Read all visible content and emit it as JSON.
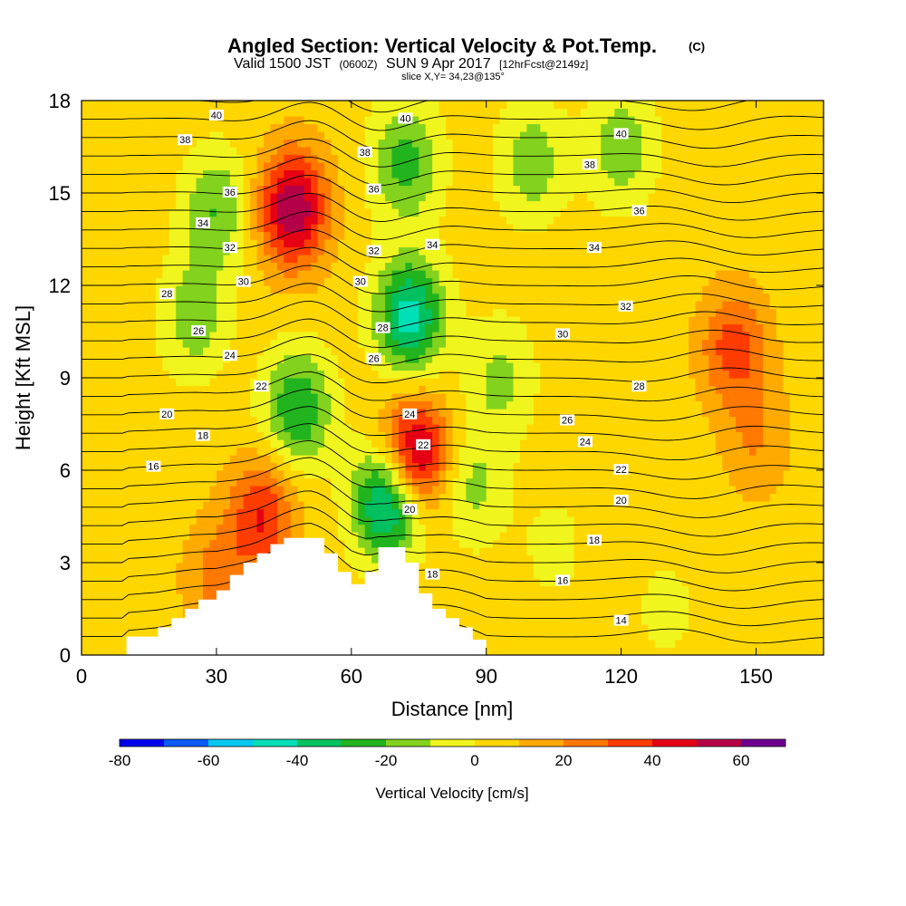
{
  "header": {
    "title": "Angled Section: Vertical Velocity & Pot.Temp.",
    "title_unit": "(C)",
    "valid_a": "Valid 1500 JST",
    "valid_b": "(0600Z)",
    "valid_c": "SUN 9 Apr 2017",
    "valid_d": "[12hrFcst@2149z]",
    "slice": "slice X,Y= 34,23@135°"
  },
  "chart_data": {
    "type": "heatmap",
    "xlabel": "Distance [nm]",
    "ylabel": "Height [Kft MSL]",
    "xlim": [
      0,
      165
    ],
    "ylim": [
      0,
      18
    ],
    "x_ticks": [
      "0",
      "30",
      "60",
      "90",
      "120",
      "150"
    ],
    "y_ticks": [
      "0",
      "3",
      "6",
      "9",
      "12",
      "15",
      "18"
    ],
    "field": "Vertical Velocity",
    "colorbar": {
      "label": "Vertical Velocity [cm/s]",
      "range": [
        -80,
        70
      ],
      "tick_labels": [
        "-80",
        "-60",
        "-40",
        "-20",
        "0",
        "20",
        "40",
        "60"
      ],
      "tick_values": [
        -80,
        -60,
        -40,
        -20,
        0,
        20,
        40,
        60
      ],
      "bins": [
        {
          "from": -80,
          "to": -70,
          "color": "#0000ee"
        },
        {
          "from": -70,
          "to": -60,
          "color": "#0a5af5"
        },
        {
          "from": -60,
          "to": -50,
          "color": "#00c8f0"
        },
        {
          "from": -50,
          "to": -40,
          "color": "#00e0b8"
        },
        {
          "from": -40,
          "to": -30,
          "color": "#00c060"
        },
        {
          "from": -30,
          "to": -20,
          "color": "#22b41e"
        },
        {
          "from": -20,
          "to": -10,
          "color": "#82d21e"
        },
        {
          "from": -10,
          "to": 0,
          "color": "#f0f51e"
        },
        {
          "from": 0,
          "to": 10,
          "color": "#ffd700"
        },
        {
          "from": 10,
          "to": 20,
          "color": "#ffaa00"
        },
        {
          "from": 20,
          "to": 30,
          "color": "#ff7800"
        },
        {
          "from": 30,
          "to": 40,
          "color": "#ff3c00"
        },
        {
          "from": 40,
          "to": 50,
          "color": "#e60014"
        },
        {
          "from": 50,
          "to": 60,
          "color": "#b40046"
        },
        {
          "from": 60,
          "to": 70,
          "color": "#6e0090"
        }
      ]
    },
    "background_value": 5,
    "features": [
      {
        "kind": "blob",
        "x": 68,
        "y": 5.0,
        "value": -55,
        "note": "downdraft near ridge"
      },
      {
        "kind": "blob",
        "x": 48,
        "y": 8.0,
        "value": -35
      },
      {
        "kind": "blob",
        "x": 73,
        "y": 11.0,
        "value": -50
      },
      {
        "kind": "blob",
        "x": 47,
        "y": 14.5,
        "value": 55,
        "note": "updraft aloft"
      },
      {
        "kind": "blob",
        "x": 74,
        "y": 6.5,
        "value": 55
      },
      {
        "kind": "blob",
        "x": 40,
        "y": 4.5,
        "value": 35
      },
      {
        "kind": "blob",
        "x": 30,
        "y": 14.5,
        "value": -25
      },
      {
        "kind": "blob",
        "x": 25,
        "y": 11.0,
        "value": -22
      },
      {
        "kind": "blob",
        "x": 72,
        "y": 16.0,
        "value": -30
      },
      {
        "kind": "blob",
        "x": 100,
        "y": 16.0,
        "value": -22
      },
      {
        "kind": "blob",
        "x": 120,
        "y": 16.5,
        "value": -22
      },
      {
        "kind": "blob",
        "x": 93,
        "y": 9.0,
        "value": -18
      },
      {
        "kind": "blob",
        "x": 87,
        "y": 5.5,
        "value": -18
      },
      {
        "kind": "blob",
        "x": 145,
        "y": 10.0,
        "value": 30
      },
      {
        "kind": "blob",
        "x": 30,
        "y": 2.5,
        "value": 18
      },
      {
        "kind": "blob",
        "x": 150,
        "y": 7.0,
        "value": 15
      },
      {
        "kind": "blob",
        "x": 105,
        "y": 3.5,
        "value": -8
      },
      {
        "kind": "blob",
        "x": 130,
        "y": 1.5,
        "value": -8
      }
    ],
    "terrain": {
      "x": [
        0,
        10,
        10,
        17,
        20,
        23,
        26,
        30,
        33,
        36,
        39,
        42,
        45,
        48,
        51,
        54,
        57,
        60,
        63,
        66,
        69,
        72,
        75,
        78,
        81,
        84,
        87,
        90,
        165
      ],
      "height": [
        0,
        0,
        0.6,
        0.9,
        1.2,
        1.5,
        1.8,
        2.1,
        2.6,
        3.0,
        3.3,
        3.6,
        3.8,
        3.8,
        3.8,
        3.3,
        2.7,
        2.3,
        2.7,
        3.5,
        3.5,
        3.0,
        2.0,
        1.5,
        1.2,
        0.9,
        0.5,
        0,
        0
      ]
    },
    "theta_contours": {
      "units": "C",
      "levels": [
        13,
        14,
        15,
        16,
        17,
        18,
        19,
        20,
        21,
        22,
        23,
        24,
        25,
        26,
        27,
        28,
        29,
        30,
        31,
        32,
        33,
        34,
        35,
        36,
        37,
        38,
        39,
        40,
        41,
        42
      ],
      "labels": [
        {
          "text": "40",
          "x": 30,
          "y": 17.5
        },
        {
          "text": "38",
          "x": 23,
          "y": 16.7
        },
        {
          "text": "36",
          "x": 33,
          "y": 15.0
        },
        {
          "text": "34",
          "x": 27,
          "y": 14.0
        },
        {
          "text": "32",
          "x": 33,
          "y": 13.2
        },
        {
          "text": "30",
          "x": 36,
          "y": 12.1
        },
        {
          "text": "28",
          "x": 19,
          "y": 11.7
        },
        {
          "text": "26",
          "x": 26,
          "y": 10.5
        },
        {
          "text": "24",
          "x": 33,
          "y": 9.7
        },
        {
          "text": "22",
          "x": 40,
          "y": 8.7
        },
        {
          "text": "20",
          "x": 19,
          "y": 7.8
        },
        {
          "text": "18",
          "x": 27,
          "y": 7.1
        },
        {
          "text": "16",
          "x": 16,
          "y": 6.1
        },
        {
          "text": "40",
          "x": 72,
          "y": 17.4
        },
        {
          "text": "38",
          "x": 63,
          "y": 16.3
        },
        {
          "text": "36",
          "x": 65,
          "y": 15.1
        },
        {
          "text": "34",
          "x": 78,
          "y": 13.3
        },
        {
          "text": "32",
          "x": 65,
          "y": 13.1
        },
        {
          "text": "30",
          "x": 62,
          "y": 12.1
        },
        {
          "text": "28",
          "x": 67,
          "y": 10.6
        },
        {
          "text": "26",
          "x": 65,
          "y": 9.6
        },
        {
          "text": "24",
          "x": 73,
          "y": 7.8
        },
        {
          "text": "22",
          "x": 76,
          "y": 6.8
        },
        {
          "text": "20",
          "x": 73,
          "y": 4.7
        },
        {
          "text": "18",
          "x": 78,
          "y": 2.6
        },
        {
          "text": "40",
          "x": 120,
          "y": 16.9
        },
        {
          "text": "38",
          "x": 113,
          "y": 15.9
        },
        {
          "text": "36",
          "x": 124,
          "y": 14.4
        },
        {
          "text": "34",
          "x": 114,
          "y": 13.2
        },
        {
          "text": "32",
          "x": 121,
          "y": 11.3
        },
        {
          "text": "30",
          "x": 107,
          "y": 10.4
        },
        {
          "text": "28",
          "x": 124,
          "y": 8.7
        },
        {
          "text": "26",
          "x": 108,
          "y": 7.6
        },
        {
          "text": "24",
          "x": 112,
          "y": 6.9
        },
        {
          "text": "22",
          "x": 120,
          "y": 6.0
        },
        {
          "text": "20",
          "x": 120,
          "y": 5.0
        },
        {
          "text": "18",
          "x": 114,
          "y": 3.7
        },
        {
          "text": "16",
          "x": 107,
          "y": 2.4
        },
        {
          "text": "14",
          "x": 120,
          "y": 1.1
        }
      ]
    }
  }
}
